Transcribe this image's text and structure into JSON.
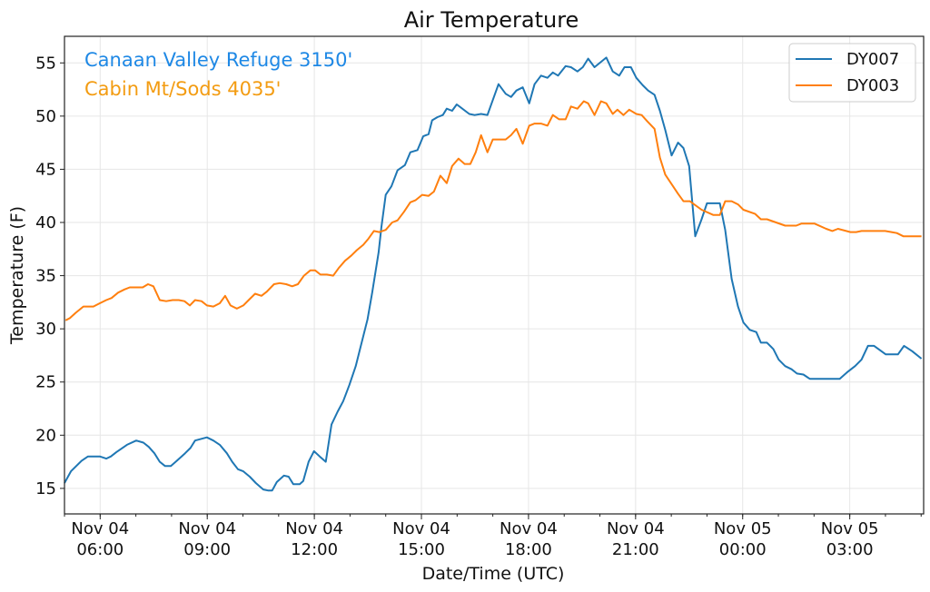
{
  "chart_data": {
    "type": "line",
    "title": "Air Temperature",
    "xlabel": "Date/Time (UTC)",
    "ylabel": "Temperature (F)",
    "x_units": "hours since Nov 04 00:00 UTC",
    "xlim": [
      5.0,
      29.07
    ],
    "ylim": [
      12.6,
      57.5
    ],
    "grid": true,
    "legend_position": "top-right",
    "yticks": [
      15,
      20,
      25,
      30,
      35,
      40,
      45,
      50,
      55
    ],
    "xticks": [
      {
        "value": 6,
        "date": "Nov 04",
        "time": "06:00"
      },
      {
        "value": 9,
        "date": "Nov 04",
        "time": "09:00"
      },
      {
        "value": 12,
        "date": "Nov 04",
        "time": "12:00"
      },
      {
        "value": 15,
        "date": "Nov 04",
        "time": "15:00"
      },
      {
        "value": 18,
        "date": "Nov 04",
        "time": "18:00"
      },
      {
        "value": 21,
        "date": "Nov 04",
        "time": "21:00"
      },
      {
        "value": 24,
        "date": "Nov 05",
        "time": "00:00"
      },
      {
        "value": 27,
        "date": "Nov 05",
        "time": "03:00"
      }
    ],
    "annotations": [
      {
        "text": "Canaan Valley Refuge 3150'",
        "color": "#1e88e5"
      },
      {
        "text": "Cabin Mt/Sods 4035'",
        "color": "#f39c12"
      }
    ],
    "series": [
      {
        "name": "DY007",
        "color": "#1f77b4",
        "x": [
          5.0,
          5.18,
          5.48,
          5.66,
          5.99,
          6.17,
          6.3,
          6.45,
          6.75,
          7.01,
          7.21,
          7.36,
          7.52,
          7.67,
          7.82,
          7.98,
          8.15,
          8.38,
          8.53,
          8.66,
          8.99,
          9.17,
          9.35,
          9.55,
          9.7,
          9.86,
          10.01,
          10.19,
          10.36,
          10.57,
          10.7,
          10.82,
          10.95,
          11.15,
          11.28,
          11.41,
          11.59,
          11.69,
          11.84,
          11.99,
          12.15,
          12.32,
          12.48,
          12.65,
          12.81,
          12.98,
          13.16,
          13.31,
          13.49,
          13.62,
          13.8,
          13.88,
          14.0,
          14.16,
          14.33,
          14.54,
          14.69,
          14.89,
          15.05,
          15.2,
          15.3,
          15.45,
          15.6,
          15.71,
          15.86,
          15.99,
          16.34,
          16.49,
          16.67,
          16.85,
          17.16,
          17.36,
          17.51,
          17.66,
          17.84,
          18.02,
          18.17,
          18.35,
          18.53,
          18.68,
          18.83,
          19.04,
          19.19,
          19.37,
          19.52,
          19.67,
          19.85,
          20.18,
          20.36,
          20.54,
          20.69,
          20.87,
          21.02,
          21.2,
          21.35,
          21.53,
          21.68,
          21.83,
          22.01,
          22.19,
          22.34,
          22.5,
          22.67,
          22.85,
          23.0,
          23.36,
          23.51,
          23.69,
          23.87,
          24.02,
          24.2,
          24.38,
          24.51,
          24.68,
          24.86,
          25.01,
          25.19,
          25.37,
          25.52,
          25.7,
          25.88,
          26.72,
          26.92,
          27.15,
          27.33,
          27.51,
          27.68,
          28.01,
          28.35,
          28.52,
          28.75,
          29.01
        ],
        "y": [
          15.5,
          16.6,
          17.6,
          18.0,
          18.0,
          17.8,
          18.0,
          18.4,
          19.1,
          19.5,
          19.3,
          18.9,
          18.3,
          17.5,
          17.1,
          17.1,
          17.6,
          18.3,
          18.8,
          19.5,
          19.8,
          19.5,
          19.1,
          18.3,
          17.5,
          16.8,
          16.6,
          16.1,
          15.5,
          14.9,
          14.8,
          14.8,
          15.6,
          16.2,
          16.1,
          15.4,
          15.4,
          15.7,
          17.5,
          18.5,
          18.0,
          17.5,
          21.0,
          22.2,
          23.2,
          24.7,
          26.5,
          28.5,
          30.9,
          33.4,
          37.2,
          39.6,
          42.6,
          43.4,
          44.9,
          45.4,
          46.6,
          46.8,
          48.1,
          48.3,
          49.6,
          49.9,
          50.1,
          50.7,
          50.5,
          51.1,
          50.2,
          50.1,
          50.2,
          50.1,
          53.0,
          52.1,
          51.8,
          52.4,
          52.7,
          51.2,
          53.0,
          53.8,
          53.6,
          54.1,
          53.8,
          54.7,
          54.6,
          54.2,
          54.6,
          55.4,
          54.6,
          55.5,
          54.2,
          53.8,
          54.6,
          54.6,
          53.6,
          52.9,
          52.4,
          52.0,
          50.5,
          48.7,
          46.3,
          47.5,
          47.0,
          45.3,
          38.7,
          40.3,
          41.8,
          41.8,
          39.3,
          34.7,
          32.1,
          30.6,
          29.9,
          29.7,
          28.7,
          28.7,
          28.1,
          27.1,
          26.5,
          26.2,
          25.8,
          25.7,
          25.3,
          25.3,
          25.9,
          26.5,
          27.1,
          28.4,
          28.4,
          27.6,
          27.6,
          28.4,
          27.9,
          27.2
        ]
      },
      {
        "name": "DY003",
        "color": "#ff7f0e",
        "x": [
          5.03,
          5.15,
          5.31,
          5.53,
          5.81,
          5.99,
          6.17,
          6.32,
          6.5,
          6.68,
          6.83,
          7.19,
          7.34,
          7.49,
          7.67,
          7.85,
          8.03,
          8.2,
          8.36,
          8.51,
          8.66,
          8.84,
          8.99,
          9.17,
          9.35,
          9.5,
          9.65,
          9.83,
          10.01,
          10.16,
          10.34,
          10.52,
          10.67,
          10.87,
          11.03,
          11.21,
          11.38,
          11.54,
          11.71,
          11.89,
          12.02,
          12.17,
          12.35,
          12.53,
          12.68,
          12.86,
          13.04,
          13.19,
          13.37,
          13.52,
          13.67,
          13.82,
          14.0,
          14.18,
          14.33,
          14.51,
          14.69,
          14.84,
          15.02,
          15.2,
          15.35,
          15.53,
          15.71,
          15.86,
          16.04,
          16.21,
          16.37,
          16.52,
          16.67,
          16.85,
          17.0,
          17.36,
          17.51,
          17.66,
          17.84,
          18.02,
          18.17,
          18.35,
          18.53,
          18.68,
          18.86,
          19.04,
          19.19,
          19.37,
          19.55,
          19.67,
          19.85,
          20.03,
          20.18,
          20.36,
          20.49,
          20.66,
          20.82,
          21.02,
          21.17,
          21.33,
          21.53,
          21.68,
          21.83,
          22.01,
          22.19,
          22.34,
          22.52,
          22.85,
          23.18,
          23.36,
          23.51,
          23.69,
          23.87,
          24.02,
          24.35,
          24.51,
          24.68,
          25.19,
          25.5,
          25.65,
          26.01,
          26.34,
          26.51,
          26.67,
          27.02,
          27.18,
          27.33,
          27.99,
          28.17,
          28.32,
          28.5,
          29.01
        ],
        "y": [
          30.8,
          31.0,
          31.5,
          32.1,
          32.1,
          32.4,
          32.7,
          32.9,
          33.4,
          33.7,
          33.9,
          33.9,
          34.2,
          34.0,
          32.7,
          32.6,
          32.7,
          32.7,
          32.6,
          32.2,
          32.7,
          32.6,
          32.2,
          32.1,
          32.4,
          33.1,
          32.2,
          31.9,
          32.2,
          32.7,
          33.3,
          33.1,
          33.5,
          34.2,
          34.3,
          34.2,
          34.0,
          34.2,
          35.0,
          35.5,
          35.5,
          35.1,
          35.1,
          35.0,
          35.7,
          36.4,
          36.9,
          37.4,
          37.9,
          38.5,
          39.2,
          39.1,
          39.3,
          40.0,
          40.2,
          41.0,
          41.9,
          42.1,
          42.6,
          42.5,
          42.9,
          44.4,
          43.7,
          45.3,
          46.0,
          45.5,
          45.5,
          46.6,
          48.2,
          46.6,
          47.8,
          47.8,
          48.2,
          48.8,
          47.4,
          49.1,
          49.3,
          49.3,
          49.1,
          50.1,
          49.7,
          49.7,
          50.9,
          50.7,
          51.4,
          51.2,
          50.1,
          51.4,
          51.2,
          50.2,
          50.6,
          50.1,
          50.6,
          50.2,
          50.1,
          49.5,
          48.8,
          46.1,
          44.5,
          43.6,
          42.7,
          42.0,
          42.0,
          41.2,
          40.7,
          40.7,
          42.0,
          42.0,
          41.7,
          41.2,
          40.8,
          40.3,
          40.3,
          39.7,
          39.7,
          39.9,
          39.9,
          39.4,
          39.2,
          39.4,
          39.1,
          39.1,
          39.2,
          39.2,
          39.1,
          39.0,
          38.7,
          38.7
        ]
      }
    ]
  }
}
